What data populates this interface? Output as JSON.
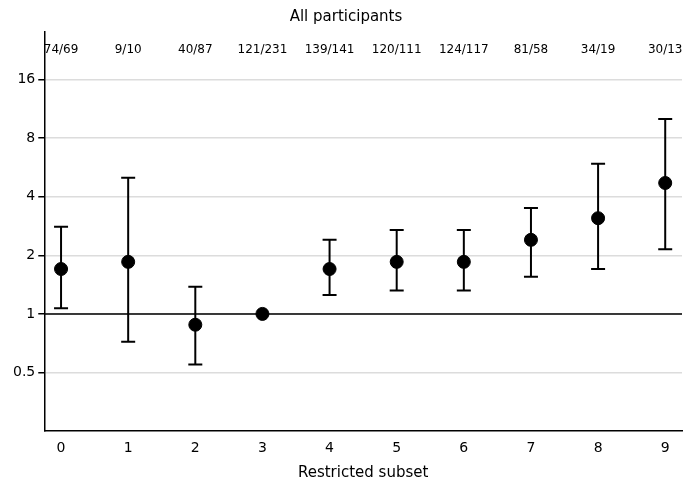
{
  "chart_data": {
    "type": "scatter",
    "title": "All participants",
    "x_label": "Restricted subset",
    "x": [
      0,
      1,
      2,
      3,
      4,
      5,
      6,
      7,
      8,
      9
    ],
    "values": [
      1.7,
      1.85,
      0.88,
      1.0,
      1.7,
      1.85,
      1.85,
      2.4,
      3.1,
      4.7
    ],
    "ci_lower": [
      1.07,
      0.72,
      0.55,
      null,
      1.25,
      1.32,
      1.32,
      1.55,
      1.7,
      2.15
    ],
    "ci_upper": [
      2.8,
      5.0,
      1.38,
      null,
      2.4,
      2.7,
      2.7,
      3.5,
      5.9,
      10.0
    ],
    "annotations": [
      "74/69",
      "9/10",
      "40/87",
      "121/231",
      "139/141",
      "120/111",
      "124/117",
      "81/58",
      "34/19",
      "30/13"
    ],
    "reference_line": 1,
    "xlim": [
      -0.25,
      9.25
    ],
    "xticks": [
      0,
      1,
      2,
      3,
      4,
      5,
      6,
      7,
      8,
      9
    ],
    "ylim": [
      0.25,
      28
    ],
    "yticks": [
      0.5,
      1,
      2,
      4,
      8,
      16
    ],
    "log": "y",
    "grid": "y",
    "color": "#000000",
    "marker": "circle"
  }
}
